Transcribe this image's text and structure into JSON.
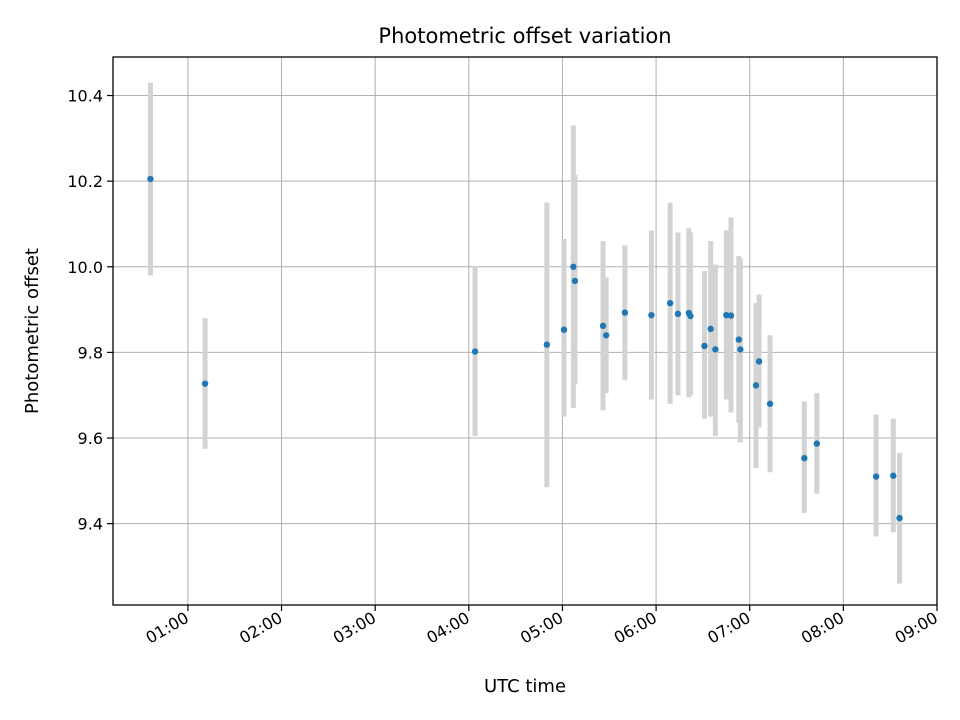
{
  "chart_data": {
    "type": "scatter",
    "title": "Photometric offset variation",
    "xlabel": "UTC time",
    "ylabel": "Photometric offset",
    "x_tick_labels": [
      "01:00",
      "02:00",
      "03:00",
      "04:00",
      "05:00",
      "06:00",
      "07:00",
      "08:00",
      "09:00"
    ],
    "y_tick_labels": [
      "9.4",
      "9.6",
      "9.8",
      "10.0",
      "10.2",
      "10.4"
    ],
    "y_ticks": [
      9.4,
      9.6,
      9.8,
      10.0,
      10.2,
      10.4
    ],
    "xlim": [
      "00:12",
      "09:00"
    ],
    "ylim": [
      9.21,
      10.49
    ],
    "grid": true,
    "point_color": "#1f77b4",
    "errorbar_color": "#d3d3d3",
    "series": [
      {
        "points": [
          {
            "x": "00:36",
            "y": 10.205,
            "lo": 9.98,
            "hi": 10.43
          },
          {
            "x": "01:11",
            "y": 9.727,
            "lo": 9.575,
            "hi": 9.88
          },
          {
            "x": "04:04",
            "y": 9.802,
            "lo": 9.605,
            "hi": 10.0
          },
          {
            "x": "04:50",
            "y": 9.818,
            "lo": 9.485,
            "hi": 10.15
          },
          {
            "x": "05:01",
            "y": 9.853,
            "lo": 9.65,
            "hi": 10.065
          },
          {
            "x": "05:07",
            "y": 10.0,
            "lo": 9.67,
            "hi": 10.33
          },
          {
            "x": "05:08",
            "y": 9.967,
            "lo": 9.725,
            "hi": 10.215
          },
          {
            "x": "05:26",
            "y": 9.862,
            "lo": 9.665,
            "hi": 10.06
          },
          {
            "x": "05:28",
            "y": 9.84,
            "lo": 9.705,
            "hi": 9.975
          },
          {
            "x": "05:40",
            "y": 9.893,
            "lo": 9.735,
            "hi": 10.05
          },
          {
            "x": "05:57",
            "y": 9.887,
            "lo": 9.69,
            "hi": 10.085
          },
          {
            "x": "06:09",
            "y": 9.915,
            "lo": 9.68,
            "hi": 10.15
          },
          {
            "x": "06:14",
            "y": 9.89,
            "lo": 9.7,
            "hi": 10.08
          },
          {
            "x": "06:21",
            "y": 9.892,
            "lo": 9.695,
            "hi": 10.09
          },
          {
            "x": "06:22",
            "y": 9.885,
            "lo": 9.7,
            "hi": 10.08
          },
          {
            "x": "06:31",
            "y": 9.815,
            "lo": 9.645,
            "hi": 9.99
          },
          {
            "x": "06:35",
            "y": 9.855,
            "lo": 9.65,
            "hi": 10.06
          },
          {
            "x": "06:38",
            "y": 9.807,
            "lo": 9.605,
            "hi": 10.005
          },
          {
            "x": "06:45",
            "y": 9.887,
            "lo": 9.69,
            "hi": 10.085
          },
          {
            "x": "06:48",
            "y": 9.886,
            "lo": 9.66,
            "hi": 10.115
          },
          {
            "x": "06:53",
            "y": 9.83,
            "lo": 9.635,
            "hi": 10.025
          },
          {
            "x": "06:54",
            "y": 9.807,
            "lo": 9.59,
            "hi": 10.02
          },
          {
            "x": "07:04",
            "y": 9.723,
            "lo": 9.53,
            "hi": 9.915
          },
          {
            "x": "07:06",
            "y": 9.779,
            "lo": 9.625,
            "hi": 9.935
          },
          {
            "x": "07:13",
            "y": 9.68,
            "lo": 9.52,
            "hi": 9.84
          },
          {
            "x": "07:35",
            "y": 9.553,
            "lo": 9.425,
            "hi": 9.685
          },
          {
            "x": "07:43",
            "y": 9.587,
            "lo": 9.47,
            "hi": 9.705
          },
          {
            "x": "08:21",
            "y": 9.51,
            "lo": 9.37,
            "hi": 9.655
          },
          {
            "x": "08:32",
            "y": 9.512,
            "lo": 9.38,
            "hi": 9.645
          },
          {
            "x": "08:36",
            "y": 9.413,
            "lo": 9.26,
            "hi": 9.565
          }
        ]
      }
    ]
  }
}
